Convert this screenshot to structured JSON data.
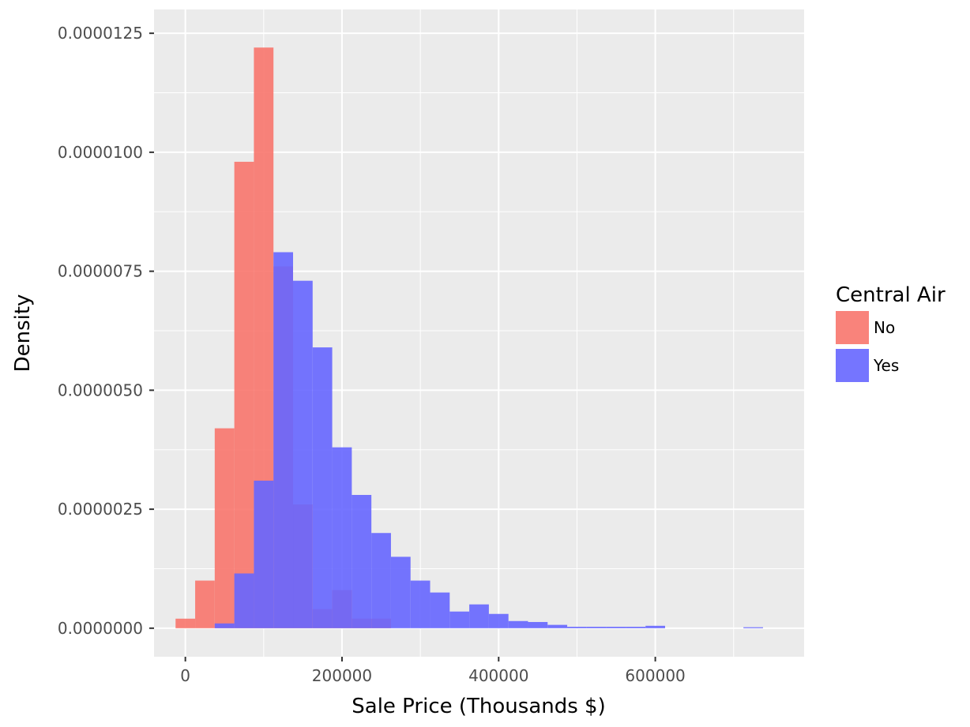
{
  "chart_data": {
    "type": "bar",
    "subtype": "overlapping-histogram",
    "xlabel": "Sale Price (Thousands $)",
    "ylabel": "Density",
    "xlim": [
      -40000,
      790000
    ],
    "ylim": [
      -6e-07,
      1.3e-05
    ],
    "x_ticks": [
      0,
      200000,
      400000,
      600000
    ],
    "x_tick_labels": [
      "0",
      "200000",
      "400000",
      "600000"
    ],
    "y_ticks": [
      0,
      2.5e-06,
      5e-06,
      7.5e-06,
      1e-05,
      1.25e-05
    ],
    "y_tick_labels": [
      "0.0000000",
      "0.0000025",
      "0.0000050",
      "0.0000075",
      "0.0000100",
      "0.0000125"
    ],
    "bin_width": 25000,
    "grid": true,
    "legend": {
      "title": "Central Air",
      "placement": "right",
      "entries": [
        "No",
        "Yes"
      ]
    },
    "series": [
      {
        "name": "No",
        "color": "#F8766D",
        "opacity": 0.9,
        "bins": [
          {
            "x0": -12500,
            "x1": 12500,
            "value": 2e-07
          },
          {
            "x0": 12500,
            "x1": 37500,
            "value": 1e-06
          },
          {
            "x0": 37500,
            "x1": 62500,
            "value": 4.2e-06
          },
          {
            "x0": 62500,
            "x1": 87500,
            "value": 9.8e-06
          },
          {
            "x0": 87500,
            "x1": 112500,
            "value": 1.22e-05
          },
          {
            "x0": 112500,
            "x1": 137500,
            "value": 7.6e-06
          },
          {
            "x0": 137500,
            "x1": 162500,
            "value": 2.6e-06
          },
          {
            "x0": 162500,
            "x1": 187500,
            "value": 4e-07
          },
          {
            "x0": 187500,
            "x1": 212500,
            "value": 8e-07
          },
          {
            "x0": 212500,
            "x1": 237500,
            "value": 2e-07
          },
          {
            "x0": 237500,
            "x1": 262500,
            "value": 2e-07
          }
        ]
      },
      {
        "name": "Yes",
        "color": "#6666FF",
        "opacity": 0.9,
        "bins": [
          {
            "x0": 37500,
            "x1": 62500,
            "value": 1e-07
          },
          {
            "x0": 62500,
            "x1": 87500,
            "value": 1.15e-06
          },
          {
            "x0": 87500,
            "x1": 112500,
            "value": 3.1e-06
          },
          {
            "x0": 112500,
            "x1": 137500,
            "value": 7.9e-06
          },
          {
            "x0": 137500,
            "x1": 162500,
            "value": 7.3e-06
          },
          {
            "x0": 162500,
            "x1": 187500,
            "value": 5.9e-06
          },
          {
            "x0": 187500,
            "x1": 212500,
            "value": 3.8e-06
          },
          {
            "x0": 212500,
            "x1": 237500,
            "value": 2.8e-06
          },
          {
            "x0": 237500,
            "x1": 262500,
            "value": 2e-06
          },
          {
            "x0": 262500,
            "x1": 287500,
            "value": 1.5e-06
          },
          {
            "x0": 287500,
            "x1": 312500,
            "value": 1e-06
          },
          {
            "x0": 312500,
            "x1": 337500,
            "value": 7.5e-07
          },
          {
            "x0": 337500,
            "x1": 362500,
            "value": 3.5e-07
          },
          {
            "x0": 362500,
            "x1": 387500,
            "value": 5e-07
          },
          {
            "x0": 387500,
            "x1": 412500,
            "value": 3e-07
          },
          {
            "x0": 412500,
            "x1": 437500,
            "value": 1.5e-07
          },
          {
            "x0": 437500,
            "x1": 462500,
            "value": 1.3e-07
          },
          {
            "x0": 462500,
            "x1": 487500,
            "value": 7e-08
          },
          {
            "x0": 487500,
            "x1": 512500,
            "value": 3e-08
          },
          {
            "x0": 512500,
            "x1": 537500,
            "value": 3e-08
          },
          {
            "x0": 537500,
            "x1": 562500,
            "value": 3e-08
          },
          {
            "x0": 562500,
            "x1": 587500,
            "value": 3e-08
          },
          {
            "x0": 587500,
            "x1": 612500,
            "value": 5e-08
          },
          {
            "x0": 612500,
            "x1": 637500,
            "value": 0
          },
          {
            "x0": 637500,
            "x1": 662500,
            "value": 0
          },
          {
            "x0": 662500,
            "x1": 687500,
            "value": 0
          },
          {
            "x0": 687500,
            "x1": 712500,
            "value": 0
          },
          {
            "x0": 712500,
            "x1": 737500,
            "value": 2e-08
          }
        ]
      }
    ],
    "colors": {
      "panel_background": "#EBEBEB",
      "grid_major": "#FFFFFF",
      "tick_text": "#4D4D4D",
      "tick_mark": "#333333"
    }
  }
}
